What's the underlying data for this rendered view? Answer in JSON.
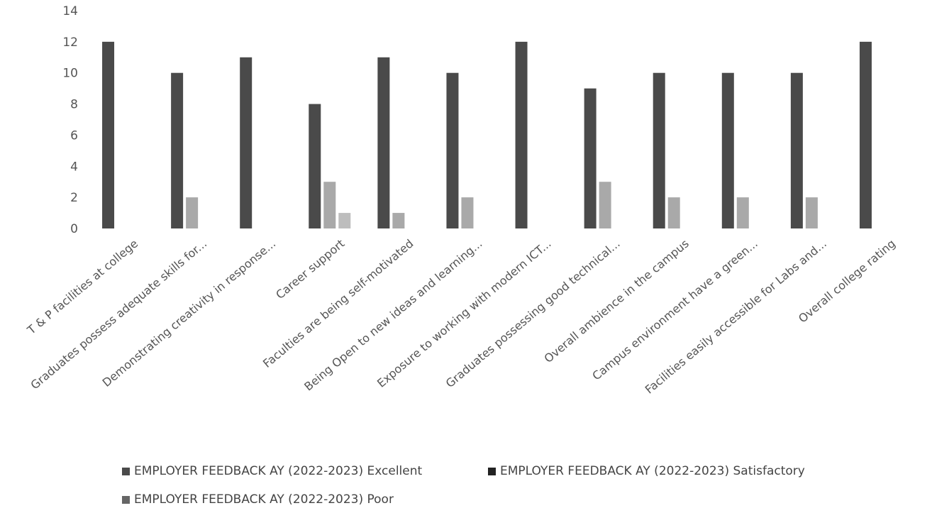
{
  "chart_data": {
    "type": "bar",
    "title": "",
    "xlabel": "",
    "ylabel": "",
    "ylim": [
      0,
      14
    ],
    "yticks": [
      0,
      2,
      4,
      6,
      8,
      10,
      12,
      14
    ],
    "grid": false,
    "legend_position": "bottom",
    "categories": [
      "T & P facilities at college",
      "Graduates possess adequate skills for...",
      "Demonstrating creativity in response...",
      "Career support",
      "Faculties are being self-motivated",
      "Being Open to new ideas and learning...",
      "Exposure to working with modern ICT...",
      "Graduates possessing good technical...",
      "Overall ambience in the campus",
      "Campus environment have a green...",
      "Facilities easily accessible for Labs and...",
      "Overall college rating"
    ],
    "series": [
      {
        "name": "EMPLOYER FEEDBACK AY (2022-2023) Excellent",
        "color": "#4a4a4a",
        "values": [
          12,
          10,
          11,
          8,
          11,
          10,
          12,
          9,
          10,
          10,
          10,
          12
        ]
      },
      {
        "name": "EMPLOYER FEEDBACK AY (2022-2023) Satisfactory",
        "color": "#a9a9a9",
        "values": [
          0,
          2,
          0,
          3,
          1,
          2,
          0,
          3,
          2,
          2,
          2,
          0
        ]
      },
      {
        "name": "EMPLOYER FEEDBACK AY (2022-2023) Poor",
        "color": "#bdbdbd",
        "values": [
          0,
          0,
          0,
          1,
          0,
          0,
          0,
          0,
          0,
          0,
          0,
          0
        ]
      }
    ]
  }
}
